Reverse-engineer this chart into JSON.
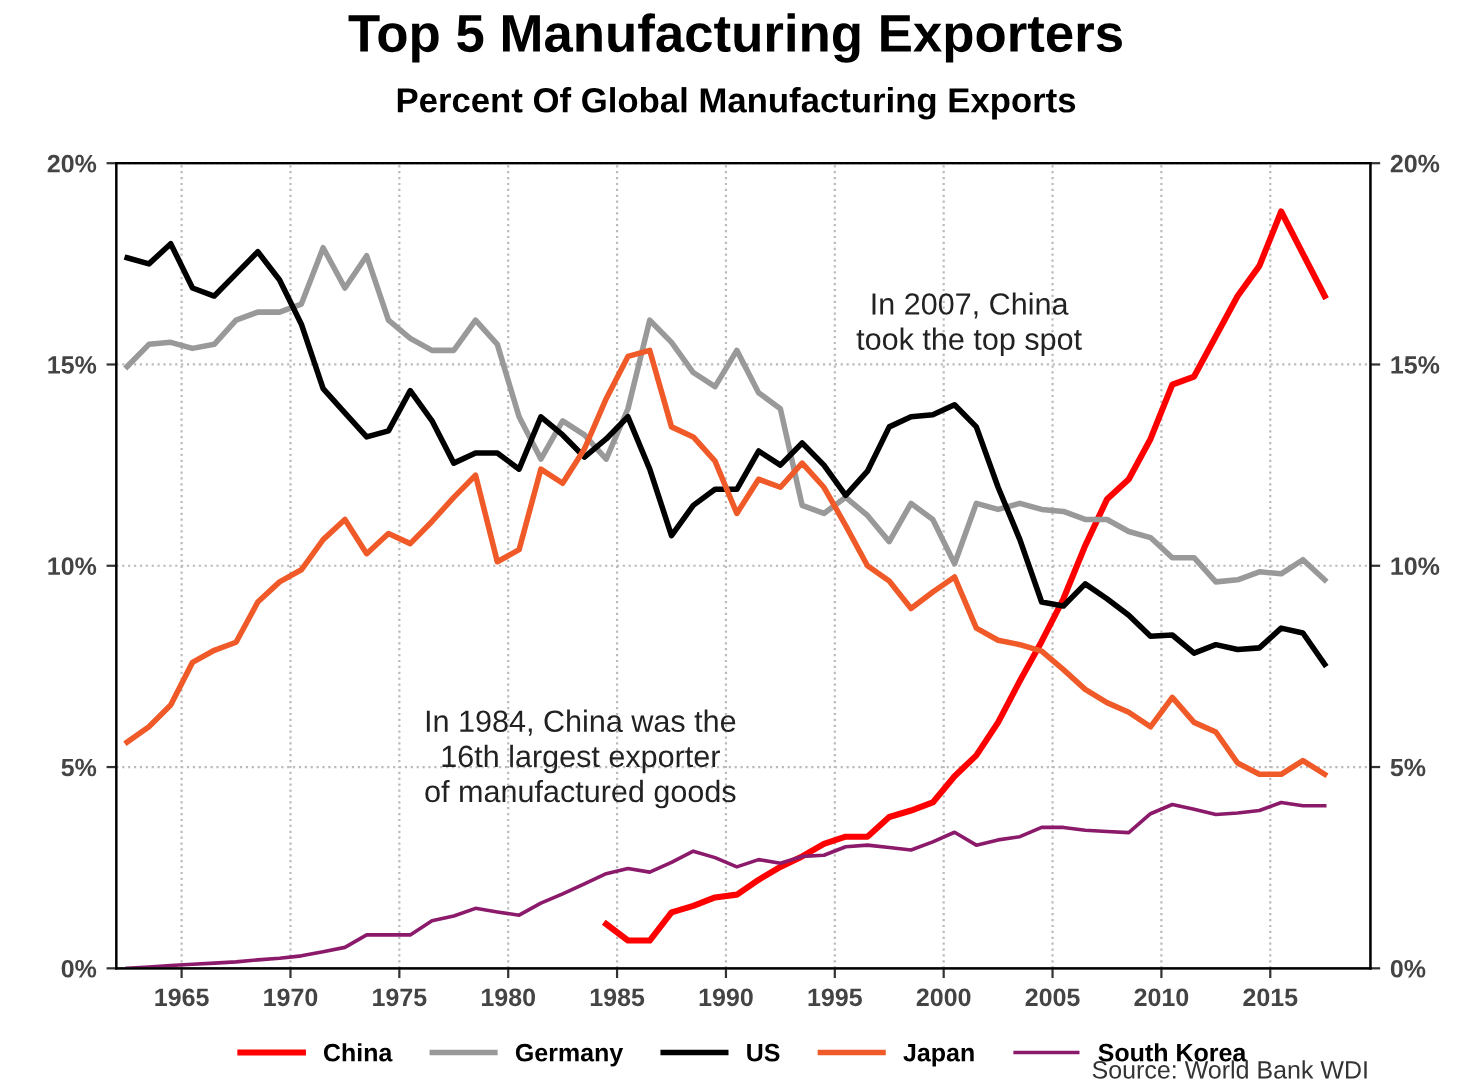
{
  "chart_data": {
    "type": "line",
    "title": "Top 5 Manufacturing Exporters",
    "subtitle": "Percent Of Global Manufacturing Exports",
    "x": [
      1962.5,
      1963.5,
      1964.5,
      1965.5,
      1966.5,
      1967.5,
      1968.5,
      1969.5,
      1970.5,
      1971.5,
      1972.5,
      1973.5,
      1974.5,
      1975.5,
      1976.5,
      1977.5,
      1978.5,
      1979.5,
      1980.5,
      1981.5,
      1982.5,
      1983.5,
      1984.5,
      1985.5,
      1986.5,
      1987.5,
      1988.5,
      1989.5,
      1990.5,
      1991.5,
      1992.5,
      1993.5,
      1994.5,
      1995.5,
      1996.5,
      1997.5,
      1998.5,
      1999.5,
      2000.5,
      2001.5,
      2002.5,
      2003.5,
      2004.5,
      2005.5,
      2006.5,
      2007.5,
      2008.5,
      2009.5,
      2010.5,
      2011.5,
      2012.5,
      2013.5,
      2014.5,
      2015.5,
      2016.5,
      2017.5
    ],
    "series": [
      {
        "name": "China",
        "color": "#ff0000",
        "values": [
          null,
          null,
          null,
          null,
          null,
          null,
          null,
          null,
          null,
          null,
          null,
          null,
          null,
          null,
          null,
          null,
          null,
          null,
          null,
          null,
          null,
          null,
          1.1,
          0.69,
          0.69,
          1.39,
          1.55,
          1.76,
          1.83,
          2.2,
          2.52,
          2.78,
          3.09,
          3.27,
          3.27,
          3.76,
          3.92,
          4.12,
          4.77,
          5.29,
          6.11,
          7.14,
          8.12,
          9.18,
          10.5,
          11.65,
          12.15,
          13.15,
          14.5,
          14.7,
          15.7,
          16.7,
          17.45,
          18.8,
          17.75,
          16.7
        ]
      },
      {
        "name": "Germany",
        "color": "#999999",
        "values": [
          14.95,
          15.5,
          15.55,
          15.4,
          15.5,
          16.1,
          16.3,
          16.3,
          16.5,
          17.9,
          16.9,
          17.7,
          16.1,
          15.65,
          15.35,
          15.35,
          16.1,
          15.5,
          13.7,
          12.65,
          13.6,
          13.25,
          12.65,
          13.9,
          16.1,
          15.55,
          14.8,
          14.45,
          15.35,
          14.3,
          13.9,
          11.5,
          11.3,
          11.7,
          11.25,
          10.6,
          11.55,
          11.15,
          10.05,
          11.55,
          11.4,
          11.55,
          11.4,
          11.35,
          11.15,
          11.15,
          10.85,
          10.7,
          10.2,
          10.2,
          9.6,
          9.65,
          9.85,
          9.8,
          10.15,
          9.65
        ]
      },
      {
        "name": "US",
        "color": "#000000",
        "values": [
          17.65,
          17.5,
          18.0,
          16.9,
          16.7,
          17.25,
          17.8,
          17.1,
          16.0,
          14.4,
          13.8,
          13.2,
          13.35,
          14.35,
          13.6,
          12.55,
          12.8,
          12.8,
          12.4,
          13.7,
          13.25,
          12.7,
          13.15,
          13.7,
          12.4,
          10.75,
          11.5,
          11.9,
          11.9,
          12.85,
          12.5,
          13.05,
          12.5,
          11.75,
          12.35,
          13.45,
          13.7,
          13.75,
          14.0,
          13.45,
          11.95,
          10.65,
          9.1,
          9.0,
          9.55,
          9.18,
          8.77,
          8.25,
          8.28,
          7.83,
          8.04,
          7.92,
          7.96,
          8.45,
          8.33,
          7.55
        ]
      },
      {
        "name": "Japan",
        "color": "#f05a28",
        "values": [
          5.62,
          6.0,
          6.54,
          7.6,
          7.9,
          8.1,
          9.1,
          9.6,
          9.9,
          10.65,
          11.15,
          10.3,
          10.8,
          10.55,
          11.1,
          11.7,
          12.25,
          10.1,
          10.4,
          12.4,
          12.05,
          12.9,
          14.15,
          15.2,
          15.35,
          13.45,
          13.2,
          12.6,
          11.3,
          12.15,
          11.95,
          12.55,
          11.95,
          11.0,
          10.0,
          9.62,
          8.94,
          9.35,
          9.72,
          8.45,
          8.15,
          8.04,
          7.88,
          7.42,
          6.93,
          6.6,
          6.36,
          6.0,
          6.73,
          6.11,
          5.87,
          5.1,
          4.82,
          4.82,
          5.16,
          4.82
        ]
      },
      {
        "name": "South Korea",
        "color": "#8b1a6b",
        "values": [
          0.0,
          0.03,
          0.07,
          0.1,
          0.13,
          0.16,
          0.21,
          0.25,
          0.31,
          0.41,
          0.52,
          0.83,
          0.83,
          0.83,
          1.18,
          1.3,
          1.49,
          1.4,
          1.32,
          1.62,
          1.85,
          2.1,
          2.35,
          2.48,
          2.39,
          2.63,
          2.91,
          2.75,
          2.52,
          2.7,
          2.61,
          2.78,
          2.81,
          3.02,
          3.06,
          3.0,
          2.94,
          3.14,
          3.38,
          3.06,
          3.19,
          3.27,
          3.5,
          3.5,
          3.43,
          3.4,
          3.37,
          3.84,
          4.07,
          3.95,
          3.82,
          3.86,
          3.92,
          4.12,
          4.04,
          4.04
        ]
      }
    ],
    "xlim": [
      1962,
      2019.6
    ],
    "xticks": [
      1965,
      1970,
      1975,
      1980,
      1985,
      1990,
      1995,
      2000,
      2005,
      2010,
      2015
    ],
    "ylim": [
      0,
      20
    ],
    "yticks": [
      {
        "value": 0,
        "label": "0%"
      },
      {
        "value": 5,
        "label": "5%"
      },
      {
        "value": 10,
        "label": "10%"
      },
      {
        "value": 15,
        "label": "15%"
      },
      {
        "value": 20,
        "label": "20%"
      }
    ],
    "y2lim": [
      0,
      20
    ],
    "y2ticks": [
      {
        "value": 0,
        "label": "0%"
      },
      {
        "value": 5,
        "label": "5%"
      },
      {
        "value": 10,
        "label": "10%"
      },
      {
        "value": 15,
        "label": "15%"
      },
      {
        "value": 20,
        "label": "20%"
      }
    ],
    "grid": true,
    "legend": "bottom",
    "line_style": "solid",
    "marker": "none",
    "annotations": [
      "In 2007, China\ntook the top spot",
      "In 1984, China was the\n16th largest exporter\nof manufactured goods",
      "Source: World Bank WDI"
    ]
  }
}
